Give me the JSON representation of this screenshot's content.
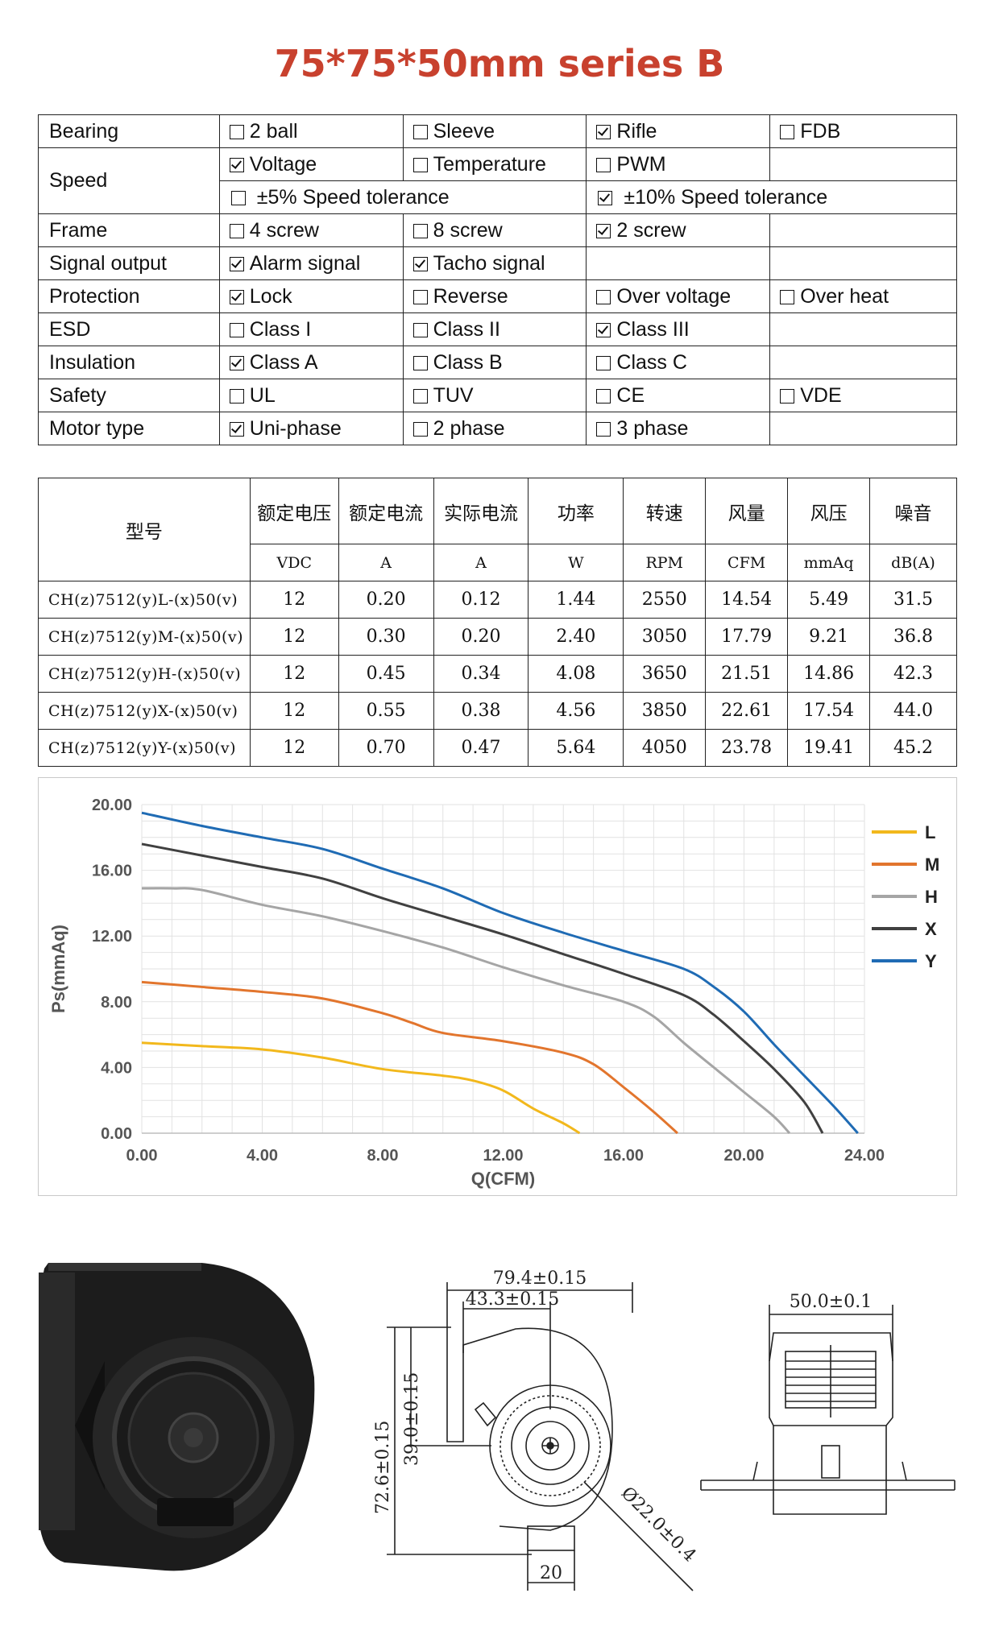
{
  "title": "75*75*50mm series B",
  "spec_table": [
    {
      "label": "Bearing",
      "options": [
        {
          "text": "2 ball",
          "checked": false
        },
        {
          "text": "Sleeve",
          "checked": false
        },
        {
          "text": "Rifle",
          "checked": true
        },
        {
          "text": "FDB",
          "checked": false
        }
      ]
    },
    {
      "label": "Speed",
      "options": [
        {
          "text": "Voltage",
          "checked": true
        },
        {
          "text": "Temperature",
          "checked": false
        },
        {
          "text": "PWM",
          "checked": false
        }
      ]
    },
    {
      "label": "",
      "options": [
        {
          "text": "±5% Speed tolerance",
          "checked": false
        },
        {
          "text": "±10% Speed tolerance",
          "checked": true
        }
      ]
    },
    {
      "label": "Frame",
      "options": [
        {
          "text": "4 screw",
          "checked": false
        },
        {
          "text": "8 screw",
          "checked": false
        },
        {
          "text": "2 screw",
          "checked": true
        }
      ]
    },
    {
      "label": "Signal output",
      "options": [
        {
          "text": "Alarm signal",
          "checked": true
        },
        {
          "text": "Tacho signal",
          "checked": true
        }
      ]
    },
    {
      "label": "Protection",
      "options": [
        {
          "text": "Lock",
          "checked": true
        },
        {
          "text": "Reverse",
          "checked": false
        },
        {
          "text": "Over voltage",
          "checked": false
        },
        {
          "text": "Over heat",
          "checked": false
        }
      ]
    },
    {
      "label": "ESD",
      "options": [
        {
          "text": "Class I",
          "checked": false
        },
        {
          "text": "Class II",
          "checked": false
        },
        {
          "text": "Class III",
          "checked": true
        }
      ]
    },
    {
      "label": "Insulation",
      "options": [
        {
          "text": "Class A",
          "checked": true
        },
        {
          "text": "Class B",
          "checked": false
        },
        {
          "text": "Class C",
          "checked": false
        }
      ]
    },
    {
      "label": "Safety",
      "options": [
        {
          "text": "UL",
          "checked": false
        },
        {
          "text": "TUV",
          "checked": false
        },
        {
          "text": "CE",
          "checked": false
        },
        {
          "text": "VDE",
          "checked": false
        }
      ]
    },
    {
      "label": "Motor type",
      "options": [
        {
          "text": "Uni-phase",
          "checked": true
        },
        {
          "text": "2 phase",
          "checked": false
        },
        {
          "text": "3 phase",
          "checked": false
        }
      ]
    }
  ],
  "model_table": {
    "model_header": "型号",
    "headers": [
      "额定电压",
      "额定电流",
      "实际电流",
      "功率",
      "转速",
      "风量",
      "风压",
      "噪音"
    ],
    "units": [
      "VDC",
      "A",
      "A",
      "W",
      "RPM",
      "CFM",
      "mmAq",
      "dB(A)"
    ],
    "rows": [
      {
        "model": "CH(z)7512(y)L-(x)50(v)",
        "values": [
          "12",
          "0.20",
          "0.12",
          "1.44",
          "2550",
          "14.54",
          "5.49",
          "31.5"
        ]
      },
      {
        "model": "CH(z)7512(y)M-(x)50(v)",
        "values": [
          "12",
          "0.30",
          "0.20",
          "2.40",
          "3050",
          "17.79",
          "9.21",
          "36.8"
        ]
      },
      {
        "model": "CH(z)7512(y)H-(x)50(v)",
        "values": [
          "12",
          "0.45",
          "0.34",
          "4.08",
          "3650",
          "21.51",
          "14.86",
          "42.3"
        ]
      },
      {
        "model": "CH(z)7512(y)X-(x)50(v)",
        "values": [
          "12",
          "0.55",
          "0.38",
          "4.56",
          "3850",
          "22.61",
          "17.54",
          "44.0"
        ]
      },
      {
        "model": "CH(z)7512(y)Y-(x)50(v)",
        "values": [
          "12",
          "0.70",
          "0.47",
          "5.64",
          "4050",
          "23.78",
          "19.41",
          "45.2"
        ]
      }
    ]
  },
  "chart_data": {
    "type": "line",
    "title": "",
    "xlabel": "Q(CFM)",
    "ylabel": "Ps(mmAq)",
    "xlim": [
      0,
      24
    ],
    "ylim": [
      0,
      20
    ],
    "xticks": [
      "0.00",
      "4.00",
      "8.00",
      "12.00",
      "16.00",
      "20.00",
      "24.00"
    ],
    "yticks": [
      "0.00",
      "4.00",
      "8.00",
      "12.00",
      "16.00",
      "20.00"
    ],
    "grid": true,
    "legend": "right",
    "series": [
      {
        "name": "L",
        "color": "#f2b81c",
        "points": [
          [
            0,
            5.5
          ],
          [
            2,
            5.3
          ],
          [
            4,
            5.1
          ],
          [
            6,
            4.6
          ],
          [
            8,
            3.9
          ],
          [
            10,
            3.5
          ],
          [
            11,
            3.2
          ],
          [
            12,
            2.6
          ],
          [
            13,
            1.5
          ],
          [
            14,
            0.6
          ],
          [
            14.54,
            0
          ]
        ]
      },
      {
        "name": "M",
        "color": "#e2752d",
        "points": [
          [
            0,
            9.2
          ],
          [
            2,
            8.9
          ],
          [
            4,
            8.6
          ],
          [
            6,
            8.2
          ],
          [
            8,
            7.3
          ],
          [
            9,
            6.7
          ],
          [
            10,
            6.1
          ],
          [
            12,
            5.6
          ],
          [
            14,
            4.9
          ],
          [
            15,
            4.2
          ],
          [
            16,
            2.8
          ],
          [
            17,
            1.3
          ],
          [
            17.79,
            0
          ]
        ]
      },
      {
        "name": "H",
        "color": "#a5a5a5",
        "points": [
          [
            0,
            14.9
          ],
          [
            1,
            14.9
          ],
          [
            2,
            14.8
          ],
          [
            4,
            13.9
          ],
          [
            6,
            13.2
          ],
          [
            8,
            12.3
          ],
          [
            10,
            11.3
          ],
          [
            12,
            10.1
          ],
          [
            14,
            9.0
          ],
          [
            16,
            8.0
          ],
          [
            17,
            7.1
          ],
          [
            18,
            5.5
          ],
          [
            19,
            4.0
          ],
          [
            20,
            2.5
          ],
          [
            21,
            1.0
          ],
          [
            21.51,
            0
          ]
        ]
      },
      {
        "name": "X",
        "color": "#404040",
        "points": [
          [
            0,
            17.6
          ],
          [
            2,
            16.9
          ],
          [
            4,
            16.2
          ],
          [
            6,
            15.5
          ],
          [
            8,
            14.3
          ],
          [
            10,
            13.2
          ],
          [
            12,
            12.1
          ],
          [
            14,
            10.9
          ],
          [
            16,
            9.7
          ],
          [
            18,
            8.4
          ],
          [
            19,
            7.2
          ],
          [
            20,
            5.6
          ],
          [
            21,
            3.9
          ],
          [
            22,
            1.9
          ],
          [
            22.61,
            0
          ]
        ]
      },
      {
        "name": "Y",
        "color": "#1f6bb4",
        "points": [
          [
            0,
            19.5
          ],
          [
            2,
            18.7
          ],
          [
            4,
            18.0
          ],
          [
            6,
            17.3
          ],
          [
            8,
            16.1
          ],
          [
            10,
            14.9
          ],
          [
            12,
            13.4
          ],
          [
            14,
            12.2
          ],
          [
            16,
            11.1
          ],
          [
            18,
            10.0
          ],
          [
            19,
            8.9
          ],
          [
            20,
            7.4
          ],
          [
            21,
            5.4
          ],
          [
            22,
            3.5
          ],
          [
            23,
            1.6
          ],
          [
            23.78,
            0
          ]
        ]
      }
    ]
  },
  "drawings": {
    "dim_total_width": "79.4±0.15",
    "dim_half_width": "43.3±0.15",
    "dim_height": "72.6±0.15",
    "dim_center_height": "39.0±0.15",
    "dim_outlet": "20",
    "dim_hub_diameter": "Ø22.0±0.4",
    "dim_thickness": "50.0±0.1"
  }
}
